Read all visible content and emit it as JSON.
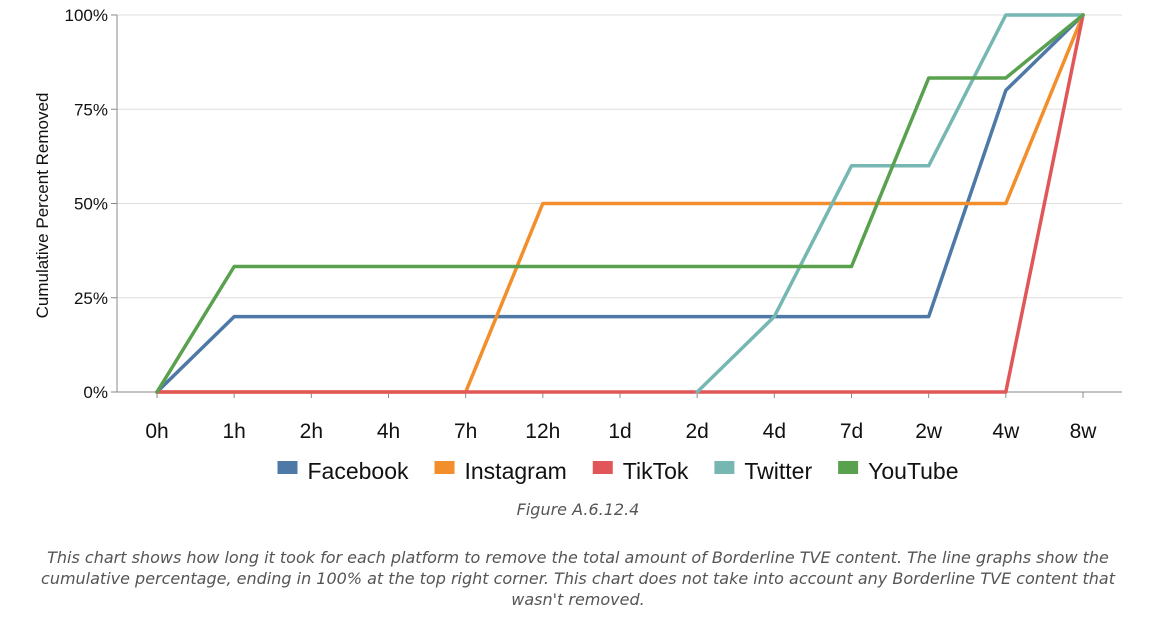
{
  "chart_data": {
    "type": "line",
    "title": "",
    "xlabel": "",
    "ylabel": "Cumulative Percent Removed",
    "categories": [
      "0h",
      "1h",
      "2h",
      "4h",
      "7h",
      "12h",
      "1d",
      "2d",
      "4d",
      "7d",
      "2w",
      "4w",
      "8w"
    ],
    "y_ticks": [
      "0%",
      "25%",
      "50%",
      "75%",
      "100%"
    ],
    "ylim": [
      0,
      100
    ],
    "grid": "horizontal",
    "legend_position": "bottom",
    "series": [
      {
        "name": "Facebook",
        "color": "#4e79a7",
        "values": [
          0,
          20,
          20,
          20,
          20,
          20,
          20,
          20,
          20,
          20,
          20,
          80,
          100
        ]
      },
      {
        "name": "Instagram",
        "color": "#f28e2b",
        "values": [
          0,
          0,
          0,
          0,
          0,
          50,
          50,
          50,
          50,
          50,
          50,
          50,
          100
        ]
      },
      {
        "name": "TikTok",
        "color": "#e15759",
        "values": [
          0,
          0,
          0,
          0,
          0,
          0,
          0,
          0,
          0,
          0,
          0,
          0,
          100
        ]
      },
      {
        "name": "Twitter",
        "color": "#76b7b2",
        "values": [
          null,
          null,
          null,
          null,
          null,
          null,
          null,
          0,
          20,
          60,
          60,
          100,
          100
        ]
      },
      {
        "name": "YouTube",
        "color": "#59a14f",
        "values": [
          0,
          33.3,
          33.3,
          33.3,
          33.3,
          33.3,
          33.3,
          33.3,
          33.3,
          33.3,
          83.3,
          83.3,
          100
        ]
      }
    ]
  },
  "figure_label": "Figure A.6.12.4",
  "caption": "This chart shows how long it took for each platform to remove the total amount of Borderline TVE content. The line graphs show the cumulative percentage, ending in 100% at the top right corner. This chart does not take into account any Borderline TVE content that wasn't removed."
}
